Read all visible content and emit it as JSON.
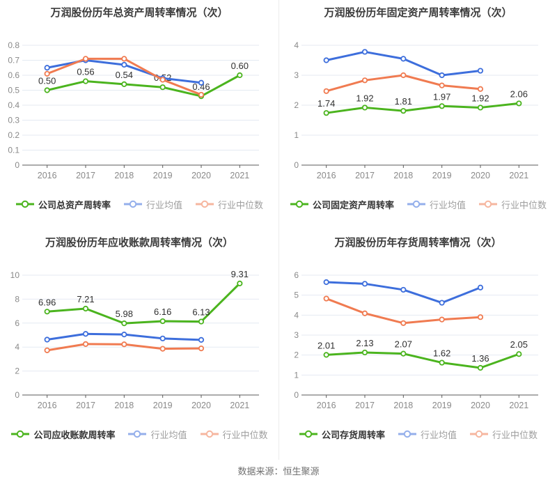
{
  "page": {
    "source_note": "数据来源：恒生聚源"
  },
  "style": {
    "grid_color": "#E4EAF2",
    "axis_color": "#5A5A5A",
    "tick_color": "#898989",
    "label_color": "#2F2F2F",
    "title_color": "#3A3A3A",
    "legend_active_color": "#333333",
    "legend_muted_color": "#9E9E9E",
    "company_color": "#4BB41E",
    "industry_mean_color": "#3D6EDC",
    "industry_median_color": "#F07B51"
  },
  "chart_data": [
    {
      "type": "line",
      "title": "万润股份历年总资产周转率情况（次）",
      "categories": [
        "2016",
        "2017",
        "2018",
        "2019",
        "2020",
        "2021"
      ],
      "ylim": [
        0,
        0.8
      ],
      "yticks": [
        "0",
        "0.1",
        "0.2",
        "0.3",
        "0.4",
        "0.5",
        "0.6",
        "0.7",
        "0.8"
      ],
      "grid": true,
      "legend_position": "bottom",
      "series": [
        {
          "name": "公司总资产周转率",
          "color": "#4BB41E",
          "values": [
            0.5,
            0.56,
            0.54,
            0.52,
            0.46,
            0.6
          ],
          "labels": [
            "0.50",
            "0.56",
            "0.54",
            "0.52",
            "0.46",
            "0.60"
          ]
        },
        {
          "name": "行业均值",
          "color": "#3D6EDC",
          "values": [
            0.65,
            0.7,
            0.67,
            0.58,
            0.55
          ]
        },
        {
          "name": "行业中位数",
          "color": "#F07B51",
          "values": [
            0.61,
            0.71,
            0.71,
            0.57,
            0.47
          ]
        }
      ]
    },
    {
      "type": "line",
      "title": "万润股份历年固定资产周转率情况（次）",
      "categories": [
        "2016",
        "2017",
        "2018",
        "2019",
        "2020",
        "2021"
      ],
      "ylim": [
        0,
        4
      ],
      "yticks": [
        "0",
        "1",
        "2",
        "3",
        "4"
      ],
      "grid": true,
      "legend_position": "bottom",
      "series": [
        {
          "name": "公司固定资产周转率",
          "color": "#4BB41E",
          "values": [
            1.74,
            1.92,
            1.81,
            1.97,
            1.92,
            2.06
          ],
          "labels": [
            "1.74",
            "1.92",
            "1.81",
            "1.97",
            "1.92",
            "2.06"
          ]
        },
        {
          "name": "行业均值",
          "color": "#3D6EDC",
          "values": [
            3.5,
            3.78,
            3.55,
            3.0,
            3.15
          ]
        },
        {
          "name": "行业中位数",
          "color": "#F07B51",
          "values": [
            2.47,
            2.83,
            3.0,
            2.66,
            2.54
          ]
        }
      ]
    },
    {
      "type": "line",
      "title": "万润股份历年应收账款周转率情况（次）",
      "categories": [
        "2016",
        "2017",
        "2018",
        "2019",
        "2020",
        "2021"
      ],
      "ylim": [
        0,
        10
      ],
      "yticks": [
        "0",
        "2",
        "4",
        "6",
        "8",
        "10"
      ],
      "grid": true,
      "legend_position": "bottom",
      "series": [
        {
          "name": "公司应收账款周转率",
          "color": "#4BB41E",
          "values": [
            6.96,
            7.21,
            5.98,
            6.16,
            6.13,
            9.31
          ],
          "labels": [
            "6.96",
            "7.21",
            "5.98",
            "6.16",
            "6.13",
            "9.31"
          ]
        },
        {
          "name": "行业均值",
          "color": "#3D6EDC",
          "values": [
            4.62,
            5.1,
            5.05,
            4.72,
            4.6
          ]
        },
        {
          "name": "行业中位数",
          "color": "#F07B51",
          "values": [
            3.73,
            4.25,
            4.23,
            3.86,
            3.89
          ]
        }
      ]
    },
    {
      "type": "line",
      "title": "万润股份历年存货周转率情况（次）",
      "categories": [
        "2016",
        "2017",
        "2018",
        "2019",
        "2020",
        "2021"
      ],
      "ylim": [
        0,
        6
      ],
      "yticks": [
        "0",
        "1",
        "2",
        "3",
        "4",
        "5",
        "6"
      ],
      "grid": true,
      "legend_position": "bottom",
      "series": [
        {
          "name": "公司存货周转率",
          "color": "#4BB41E",
          "values": [
            2.01,
            2.13,
            2.07,
            1.62,
            1.36,
            2.05
          ],
          "labels": [
            "2.01",
            "2.13",
            "2.07",
            "1.62",
            "1.36",
            "2.05"
          ]
        },
        {
          "name": "行业均值",
          "color": "#3D6EDC",
          "values": [
            5.65,
            5.57,
            5.27,
            4.62,
            5.38
          ]
        },
        {
          "name": "行业中位数",
          "color": "#F07B51",
          "values": [
            4.83,
            4.09,
            3.6,
            3.78,
            3.9
          ]
        }
      ]
    }
  ]
}
